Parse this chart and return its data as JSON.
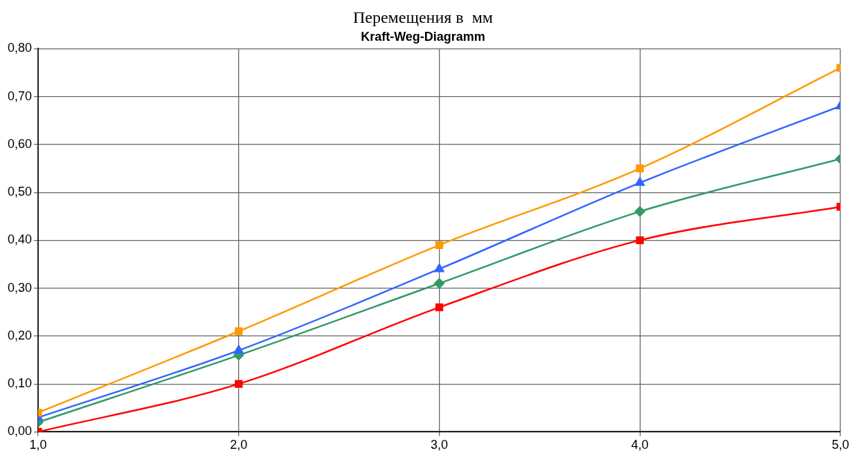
{
  "chart_data": {
    "type": "line",
    "title": "Перемещения в  мм",
    "subtitle": "Kraft-Weg-Diagramm",
    "x": [
      1,
      2,
      3,
      4,
      5
    ],
    "xlim": [
      1,
      5
    ],
    "xticks": [
      {
        "value": 1,
        "label": "1,0"
      },
      {
        "value": 2,
        "label": "2,0"
      },
      {
        "value": 3,
        "label": "3,0"
      },
      {
        "value": 4,
        "label": "4,0"
      },
      {
        "value": 5,
        "label": "5,0"
      }
    ],
    "ylim": [
      0,
      0.8
    ],
    "yticks": [
      {
        "value": 0,
        "label": "0,00"
      },
      {
        "value": 0.1,
        "label": "0,10"
      },
      {
        "value": 0.2,
        "label": "0,20"
      },
      {
        "value": 0.3,
        "label": "0,30"
      },
      {
        "value": 0.4,
        "label": "0,40"
      },
      {
        "value": 0.5,
        "label": "0,50"
      },
      {
        "value": 0.6,
        "label": "0,60"
      },
      {
        "value": 0.7,
        "label": "0,70"
      },
      {
        "value": 0.8,
        "label": "0,80"
      }
    ],
    "grid": true,
    "legend": false,
    "line_style": "solid",
    "series": [
      {
        "color": "#ff9900",
        "marker": "square",
        "values": [
          0.04,
          0.21,
          0.39,
          0.55,
          0.76
        ]
      },
      {
        "color": "#3366ff",
        "marker": "triangle",
        "values": [
          0.03,
          0.17,
          0.34,
          0.52,
          0.68
        ]
      },
      {
        "color": "#339966",
        "marker": "diamond",
        "values": [
          0.02,
          0.16,
          0.31,
          0.46,
          0.57
        ]
      },
      {
        "color": "#ff0000",
        "marker": "square",
        "values": [
          0.0,
          0.1,
          0.26,
          0.4,
          0.47
        ]
      }
    ]
  }
}
